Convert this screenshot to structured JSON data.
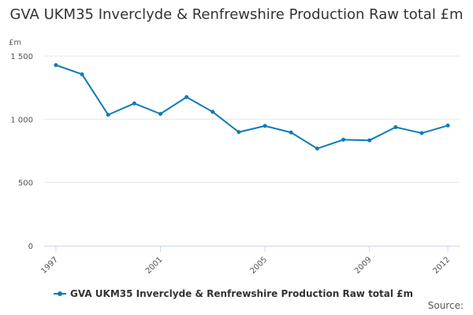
{
  "colors": {
    "series": "#0e7ab8",
    "grid": "#e6e6e6",
    "axis": "#ccd6eb",
    "text": "#333333"
  },
  "chart_data": {
    "type": "line",
    "title": "GVA UKM35 Inverclyde & Renfrewshire Production Raw total £m",
    "ylabel": "£m",
    "xlabel": "",
    "ylim": [
      0,
      1600
    ],
    "xlim": [
      1997,
      2012
    ],
    "y_ticks": [
      {
        "value": 0,
        "label": "0"
      },
      {
        "value": 500,
        "label": "500"
      },
      {
        "value": 1000,
        "label": "1 000"
      },
      {
        "value": 1500,
        "label": "1 500"
      }
    ],
    "x_ticks": [
      {
        "value": 1997,
        "label": "1997"
      },
      {
        "value": 2001,
        "label": "2001"
      },
      {
        "value": 2005,
        "label": "2005"
      },
      {
        "value": 2009,
        "label": "2009"
      },
      {
        "value": 2012,
        "label": "2012"
      }
    ],
    "x": [
      1997,
      1998,
      1999,
      2000,
      2001,
      2002,
      2003,
      2004,
      2005,
      2006,
      2007,
      2008,
      2009,
      2010,
      2011,
      2012
    ],
    "series": [
      {
        "name": "GVA UKM35 Inverclyde & Renfrewshire Production Raw total £m",
        "values": [
          1428,
          1355,
          1035,
          1125,
          1042,
          1175,
          1058,
          898,
          947,
          895,
          768,
          838,
          833,
          937,
          890,
          950
        ]
      }
    ],
    "grid": true,
    "legend": "bottom-left"
  },
  "legend": {
    "label": "GVA UKM35 Inverclyde & Renfrewshire Production Raw total £m"
  },
  "source": {
    "label": "Source:"
  }
}
